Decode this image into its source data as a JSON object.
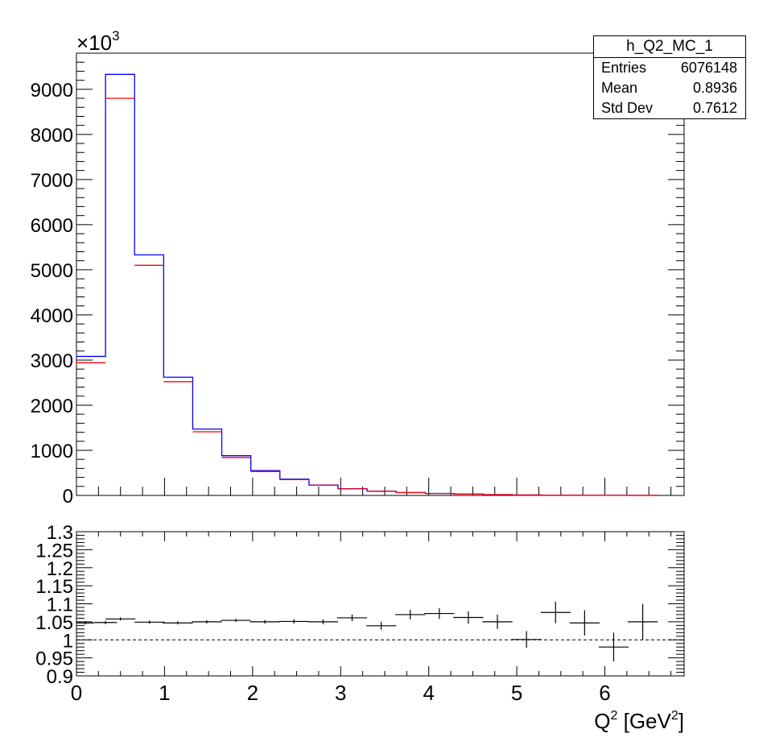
{
  "chart_data": [
    {
      "type": "histogram",
      "multiplier": "×10",
      "multiplier_exp": "3",
      "xlim": [
        0,
        6.9
      ],
      "ylim": [
        0,
        9800
      ],
      "yticks": [
        "0",
        "1000",
        "2000",
        "3000",
        "4000",
        "5000",
        "6000",
        "7000",
        "8000",
        "9000"
      ],
      "ytick_values": [
        0,
        1000,
        2000,
        3000,
        4000,
        5000,
        6000,
        7000,
        8000,
        9000
      ],
      "bin_edges": [
        0,
        0.33,
        0.66,
        0.99,
        1.32,
        1.65,
        1.98,
        2.31,
        2.64,
        2.97,
        3.3,
        3.63,
        3.96,
        4.29,
        4.62,
        4.95,
        5.28,
        5.61,
        5.94,
        6.27,
        6.6
      ],
      "colors": {
        "mc": "#0000ff",
        "data": "#ff0000"
      },
      "series": [
        {
          "values": [
            3080,
            9330,
            5330,
            2620,
            1470,
            880,
            550,
            360,
            230,
            150,
            95,
            65,
            45,
            30,
            18,
            10,
            6,
            4,
            3,
            2
          ]
        },
        {
          "values": [
            2940,
            8800,
            5100,
            2520,
            1410,
            840,
            530,
            350,
            225,
            145,
            92,
            62,
            43,
            29,
            17,
            9,
            5,
            3,
            2,
            1
          ]
        }
      ]
    },
    {
      "type": "scatter",
      "xlabel_main": "Q",
      "xlabel_sup": "2",
      "xlabel_unit": " [GeV",
      "xlabel_unit_sup": "2",
      "xlabel_close": "]",
      "xlim": [
        0,
        6.9
      ],
      "ylim": [
        0.9,
        1.3
      ],
      "reference_line": 1.0,
      "xticks": [
        "0",
        "1",
        "2",
        "3",
        "4",
        "5",
        "6"
      ],
      "xtick_values": [
        0,
        1,
        2,
        3,
        4,
        5,
        6
      ],
      "yticks": [
        "0.9",
        "0.95",
        "1",
        "1.05",
        "1.1",
        "1.15",
        "1.2",
        "1.25",
        "1.3"
      ],
      "ytick_values": [
        0.9,
        0.95,
        1.0,
        1.05,
        1.1,
        1.15,
        1.2,
        1.25,
        1.3
      ],
      "points": [
        {
          "x": 0.1,
          "xerr": 0.1,
          "y": 1.047,
          "yerr": 0.001
        },
        {
          "x": 0.33,
          "xerr": 0.13,
          "y": 1.048,
          "yerr": 0.001
        },
        {
          "x": 0.5,
          "xerr": 0.17,
          "y": 1.058,
          "yerr": 0.001
        },
        {
          "x": 0.83,
          "xerr": 0.17,
          "y": 1.049,
          "yerr": 0.001
        },
        {
          "x": 1.15,
          "xerr": 0.17,
          "y": 1.047,
          "yerr": 0.002
        },
        {
          "x": 1.48,
          "xerr": 0.17,
          "y": 1.05,
          "yerr": 0.003
        },
        {
          "x": 1.81,
          "xerr": 0.17,
          "y": 1.054,
          "yerr": 0.004
        },
        {
          "x": 2.14,
          "xerr": 0.17,
          "y": 1.05,
          "yerr": 0.005
        },
        {
          "x": 2.47,
          "xerr": 0.17,
          "y": 1.051,
          "yerr": 0.006
        },
        {
          "x": 2.8,
          "xerr": 0.17,
          "y": 1.05,
          "yerr": 0.007
        },
        {
          "x": 3.13,
          "xerr": 0.17,
          "y": 1.061,
          "yerr": 0.009
        },
        {
          "x": 3.46,
          "xerr": 0.17,
          "y": 1.039,
          "yerr": 0.011
        },
        {
          "x": 3.79,
          "xerr": 0.17,
          "y": 1.07,
          "yerr": 0.013
        },
        {
          "x": 4.12,
          "xerr": 0.17,
          "y": 1.073,
          "yerr": 0.015
        },
        {
          "x": 4.45,
          "xerr": 0.17,
          "y": 1.062,
          "yerr": 0.017
        },
        {
          "x": 4.78,
          "xerr": 0.17,
          "y": 1.05,
          "yerr": 0.02
        },
        {
          "x": 5.11,
          "xerr": 0.17,
          "y": 1.001,
          "yerr": 0.023
        },
        {
          "x": 5.44,
          "xerr": 0.17,
          "y": 1.076,
          "yerr": 0.03
        },
        {
          "x": 5.77,
          "xerr": 0.17,
          "y": 1.047,
          "yerr": 0.035
        },
        {
          "x": 6.1,
          "xerr": 0.17,
          "y": 0.98,
          "yerr": 0.04
        },
        {
          "x": 6.43,
          "xerr": 0.17,
          "y": 1.05,
          "yerr": 0.05
        }
      ]
    }
  ],
  "stats": {
    "title": "h_Q2_MC_1",
    "rows": [
      {
        "label": "Entries",
        "value": "6076148"
      },
      {
        "label": "Mean",
        "value": "0.8936"
      },
      {
        "label": "Std Dev",
        "value": "0.7612"
      }
    ]
  }
}
